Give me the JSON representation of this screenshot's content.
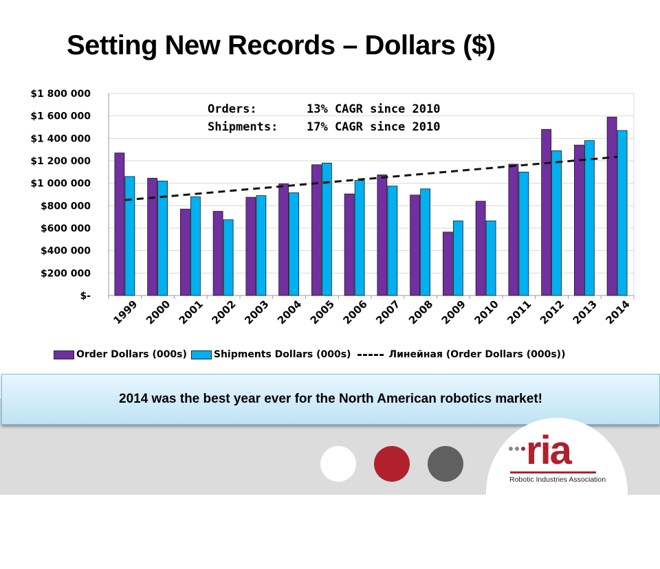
{
  "slide": {
    "title": "Setting New Records – Dollars ($)",
    "callout": "2014 was the best year ever for the North American robotics market!"
  },
  "annotations": [
    {
      "label": "Orders:",
      "text": "13% CAGR since 2010"
    },
    {
      "label": "Shipments:",
      "text": "17% CAGR since 2010"
    }
  ],
  "legend": {
    "order": "Order Dollars (000s)",
    "shipments": "Shipments Dollars (000s)",
    "trend": "Линейная (Order Dollars (000s))"
  },
  "logo": {
    "mark": "ria",
    "caption": "Robotic Industries Association"
  },
  "colors": {
    "orders": "#7030A0",
    "shipments": "#00B0F0",
    "trend": "#111111",
    "logo_red": "#B0202D",
    "circle_white": "#FFFFFF",
    "circle_red": "#B0202D",
    "circle_grey": "#606060"
  },
  "chart_data": {
    "type": "bar",
    "title": "",
    "xlabel": "",
    "ylabel": "",
    "ylim": [
      0,
      1800000
    ],
    "yticks": [
      0,
      200000,
      400000,
      600000,
      800000,
      1000000,
      1200000,
      1400000,
      1600000,
      1800000
    ],
    "ytick_labels": [
      "$-",
      "$200 000",
      "$400 000",
      "$600 000",
      "$800 000",
      "$1 000 000",
      "$1 200 000",
      "$1 400 000",
      "$1 600 000",
      "$1 800 000"
    ],
    "categories": [
      "1999",
      "2000",
      "2001",
      "2002",
      "2003",
      "2004",
      "2005",
      "2006",
      "2007",
      "2008",
      "2009",
      "2010",
      "2011",
      "2012",
      "2013",
      "2014"
    ],
    "series": [
      {
        "name": "Order Dollars (000s)",
        "values": [
          1270000,
          1045000,
          770000,
          750000,
          875000,
          995000,
          1165000,
          905000,
          1075000,
          895000,
          565000,
          840000,
          1170000,
          1480000,
          1340000,
          1590000
        ]
      },
      {
        "name": "Shipments Dollars (000s)",
        "values": [
          1060000,
          1020000,
          880000,
          675000,
          890000,
          915000,
          1180000,
          1025000,
          975000,
          950000,
          665000,
          665000,
          1100000,
          1290000,
          1380000,
          1470000
        ]
      }
    ],
    "trendline": {
      "name": "Линейная (Order Dollars (000s))",
      "of_series": "Order Dollars (000s)",
      "start": 850000,
      "end": 1235000
    },
    "grid": true,
    "legend": "bottom"
  }
}
